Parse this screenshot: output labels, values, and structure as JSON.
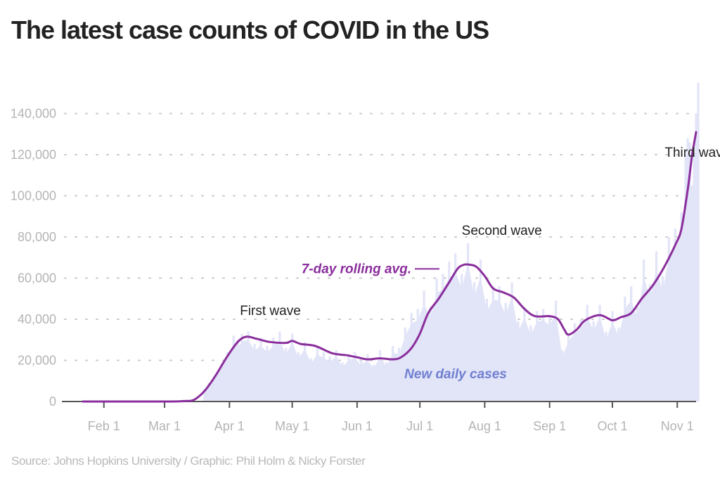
{
  "title": "The latest case counts of COVID in the US",
  "source": "Source: Johns Hopkins University / Graphic: Phil Holm & Nicky Forster",
  "colors": {
    "avg_line": "#8a2e9c",
    "daily_bars": "#e2e4f8",
    "daily_label": "#6f7fd0",
    "grid": "#c8c8c8",
    "axis": "#555555"
  },
  "chart_data": {
    "type": "area",
    "title": "The latest case counts of COVID in the US",
    "xlabel": "",
    "ylabel": "",
    "x_range": [
      "2020-01-22",
      "2020-11-10"
    ],
    "ylim": [
      0,
      155000
    ],
    "y_ticks": [
      0,
      20000,
      40000,
      60000,
      80000,
      100000,
      120000,
      140000
    ],
    "y_tick_labels": [
      "0",
      "20,000",
      "40,000",
      "60,000",
      "80,000",
      "100,000",
      "120,000",
      "140,000"
    ],
    "x_ticks": [
      "2020-02-01",
      "2020-03-01",
      "2020-04-01",
      "2020-05-01",
      "2020-06-01",
      "2020-07-01",
      "2020-08-01",
      "2020-09-01",
      "2020-10-01",
      "2020-11-01"
    ],
    "x_tick_labels": [
      "Feb 1",
      "Mar 1",
      "Apr 1",
      "May 1",
      "Jun 1",
      "Jul 1",
      "Aug 1",
      "Sep 1",
      "Oct 1",
      "Nov 1"
    ],
    "grid": true,
    "series": [
      {
        "name": "7-day rolling avg.",
        "type": "line",
        "points": [
          [
            "2020-01-22",
            0
          ],
          [
            "2020-03-01",
            0
          ],
          [
            "2020-03-10",
            200
          ],
          [
            "2020-03-15",
            800
          ],
          [
            "2020-03-20",
            5000
          ],
          [
            "2020-03-25",
            12000
          ],
          [
            "2020-03-31",
            22000
          ],
          [
            "2020-04-05",
            29000
          ],
          [
            "2020-04-09",
            31500
          ],
          [
            "2020-04-14",
            30500
          ],
          [
            "2020-04-20",
            29000
          ],
          [
            "2020-04-28",
            28500
          ],
          [
            "2020-05-01",
            29500
          ],
          [
            "2020-05-05",
            28000
          ],
          [
            "2020-05-12",
            27000
          ],
          [
            "2020-05-20",
            23500
          ],
          [
            "2020-05-27",
            22500
          ],
          [
            "2020-06-01",
            21500
          ],
          [
            "2020-06-06",
            20500
          ],
          [
            "2020-06-12",
            21000
          ],
          [
            "2020-06-18",
            20500
          ],
          [
            "2020-06-22",
            21500
          ],
          [
            "2020-06-27",
            26000
          ],
          [
            "2020-07-01",
            33000
          ],
          [
            "2020-07-05",
            43000
          ],
          [
            "2020-07-10",
            50000
          ],
          [
            "2020-07-15",
            58000
          ],
          [
            "2020-07-19",
            64500
          ],
          [
            "2020-07-22",
            66500
          ],
          [
            "2020-07-25",
            66500
          ],
          [
            "2020-07-28",
            65500
          ],
          [
            "2020-08-01",
            61000
          ],
          [
            "2020-08-05",
            55000
          ],
          [
            "2020-08-10",
            53000
          ],
          [
            "2020-08-15",
            50500
          ],
          [
            "2020-08-20",
            45000
          ],
          [
            "2020-08-25",
            41500
          ],
          [
            "2020-09-01",
            41500
          ],
          [
            "2020-09-05",
            40000
          ],
          [
            "2020-09-08",
            35000
          ],
          [
            "2020-09-10",
            32500
          ],
          [
            "2020-09-14",
            35000
          ],
          [
            "2020-09-18",
            39500
          ],
          [
            "2020-09-25",
            42000
          ],
          [
            "2020-10-01",
            39500
          ],
          [
            "2020-10-05",
            41000
          ],
          [
            "2020-10-10",
            43000
          ],
          [
            "2020-10-15",
            50000
          ],
          [
            "2020-10-20",
            56000
          ],
          [
            "2020-10-25",
            64000
          ],
          [
            "2020-10-31",
            76000
          ],
          [
            "2020-11-03",
            84000
          ],
          [
            "2020-11-06",
            103000
          ],
          [
            "2020-11-08",
            119000
          ],
          [
            "2020-11-10",
            131000
          ]
        ]
      },
      {
        "name": "New daily cases",
        "type": "bar",
        "points": [
          [
            "2020-03-20",
            6000
          ],
          [
            "2020-03-22",
            9000
          ],
          [
            "2020-03-25",
            13000
          ],
          [
            "2020-03-28",
            18000
          ],
          [
            "2020-03-31",
            24000
          ],
          [
            "2020-04-03",
            32000
          ],
          [
            "2020-04-05",
            30000
          ],
          [
            "2020-04-07",
            33000
          ],
          [
            "2020-04-10",
            34000
          ],
          [
            "2020-04-13",
            28000
          ],
          [
            "2020-04-16",
            31000
          ],
          [
            "2020-04-19",
            27000
          ],
          [
            "2020-04-22",
            31000
          ],
          [
            "2020-04-25",
            34000
          ],
          [
            "2020-04-28",
            26000
          ],
          [
            "2020-05-01",
            33000
          ],
          [
            "2020-05-04",
            24000
          ],
          [
            "2020-05-07",
            29000
          ],
          [
            "2020-05-10",
            21000
          ],
          [
            "2020-05-13",
            26000
          ],
          [
            "2020-05-16",
            24000
          ],
          [
            "2020-05-19",
            22000
          ],
          [
            "2020-05-22",
            25000
          ],
          [
            "2020-05-25",
            19000
          ],
          [
            "2020-05-28",
            23000
          ],
          [
            "2020-05-31",
            24000
          ],
          [
            "2020-06-03",
            20000
          ],
          [
            "2020-06-06",
            23000
          ],
          [
            "2020-06-09",
            18000
          ],
          [
            "2020-06-12",
            25000
          ],
          [
            "2020-06-15",
            19000
          ],
          [
            "2020-06-18",
            27000
          ],
          [
            "2020-06-21",
            26000
          ],
          [
            "2020-06-24",
            36000
          ],
          [
            "2020-06-27",
            43000
          ],
          [
            "2020-06-30",
            45000
          ],
          [
            "2020-07-03",
            54000
          ],
          [
            "2020-07-06",
            46000
          ],
          [
            "2020-07-09",
            60000
          ],
          [
            "2020-07-12",
            62000
          ],
          [
            "2020-07-15",
            68000
          ],
          [
            "2020-07-18",
            72000
          ],
          [
            "2020-07-21",
            62000
          ],
          [
            "2020-07-24",
            77000
          ],
          [
            "2020-07-27",
            58000
          ],
          [
            "2020-07-30",
            69000
          ],
          [
            "2020-08-02",
            50000
          ],
          [
            "2020-08-05",
            56000
          ],
          [
            "2020-08-08",
            56000
          ],
          [
            "2020-08-11",
            48000
          ],
          [
            "2020-08-14",
            58000
          ],
          [
            "2020-08-17",
            39000
          ],
          [
            "2020-08-20",
            46000
          ],
          [
            "2020-08-23",
            37000
          ],
          [
            "2020-08-26",
            44000
          ],
          [
            "2020-08-29",
            45000
          ],
          [
            "2020-09-01",
            42000
          ],
          [
            "2020-09-04",
            49000
          ],
          [
            "2020-09-07",
            25000
          ],
          [
            "2020-09-10",
            33000
          ],
          [
            "2020-09-13",
            38000
          ],
          [
            "2020-09-16",
            40000
          ],
          [
            "2020-09-19",
            47000
          ],
          [
            "2020-09-22",
            39000
          ],
          [
            "2020-09-25",
            47000
          ],
          [
            "2020-09-28",
            34000
          ],
          [
            "2020-10-01",
            44000
          ],
          [
            "2020-10-04",
            36000
          ],
          [
            "2020-10-07",
            51000
          ],
          [
            "2020-10-10",
            56000
          ],
          [
            "2020-10-13",
            46000
          ],
          [
            "2020-10-16",
            69000
          ],
          [
            "2020-10-19",
            57000
          ],
          [
            "2020-10-22",
            73000
          ],
          [
            "2020-10-25",
            61000
          ],
          [
            "2020-10-28",
            80000
          ],
          [
            "2020-10-31",
            84000
          ],
          [
            "2020-11-03",
            92000
          ],
          [
            "2020-11-05",
            120000
          ],
          [
            "2020-11-06",
            128000
          ],
          [
            "2020-11-07",
            126000
          ],
          [
            "2020-11-08",
            105000
          ],
          [
            "2020-11-09",
            121000
          ],
          [
            "2020-11-10",
            140000
          ],
          [
            "2020-11-11",
            155000
          ]
        ]
      }
    ],
    "annotations": [
      {
        "text": "First wave",
        "x": "2020-04-06",
        "y": 42000
      },
      {
        "text": "Second wave",
        "x": "2020-07-21",
        "y": 81000
      },
      {
        "text": "Third wave",
        "x": "2020-10-26",
        "y": 119000
      }
    ],
    "series_labels": {
      "avg": "7-day rolling avg.",
      "daily": "New daily cases"
    }
  }
}
